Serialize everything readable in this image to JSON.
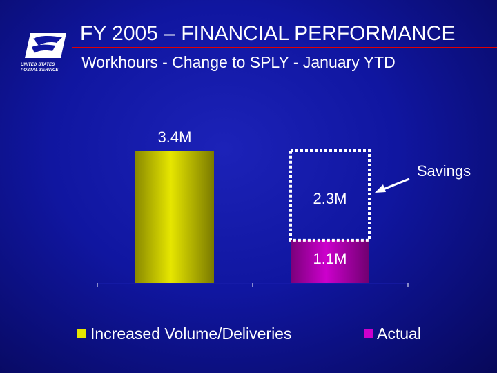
{
  "header": {
    "title": "FY 2005 – FINANCIAL PERFORMANCE",
    "subtitle": "Workhours - Change to SPLY - January YTD"
  },
  "logo": {
    "icon": "usps-eagle-icon",
    "line1": "UNITED STATES",
    "line2": "POSTAL SERVICE"
  },
  "colors": {
    "background": "#1016a0",
    "title_rule": "#e00000",
    "increased": "#e6e600",
    "actual": "#cc00cc",
    "savings_outline": "#ffffff"
  },
  "chart_data": {
    "type": "bar",
    "categories": [
      "Increased Volume/Deliveries",
      "Actual"
    ],
    "series": [
      {
        "name": "Increased Volume/Deliveries",
        "values": [
          3.4,
          null
        ],
        "labels": [
          "3.4M",
          ""
        ]
      },
      {
        "name": "Actual",
        "values": [
          null,
          1.1
        ],
        "labels": [
          "",
          "1.1M"
        ]
      },
      {
        "name": "Savings",
        "values": [
          null,
          2.3
        ],
        "labels": [
          "",
          "2.3M"
        ],
        "style": "dashed-outline",
        "stacked_on": "Actual"
      }
    ],
    "annotation": {
      "text": "Savings",
      "points_to": "Savings"
    },
    "ylim": [
      0,
      3.4
    ],
    "grid": false,
    "legend": {
      "position": "bottom",
      "items": [
        "Increased Volume/Deliveries",
        "Actual"
      ]
    }
  }
}
